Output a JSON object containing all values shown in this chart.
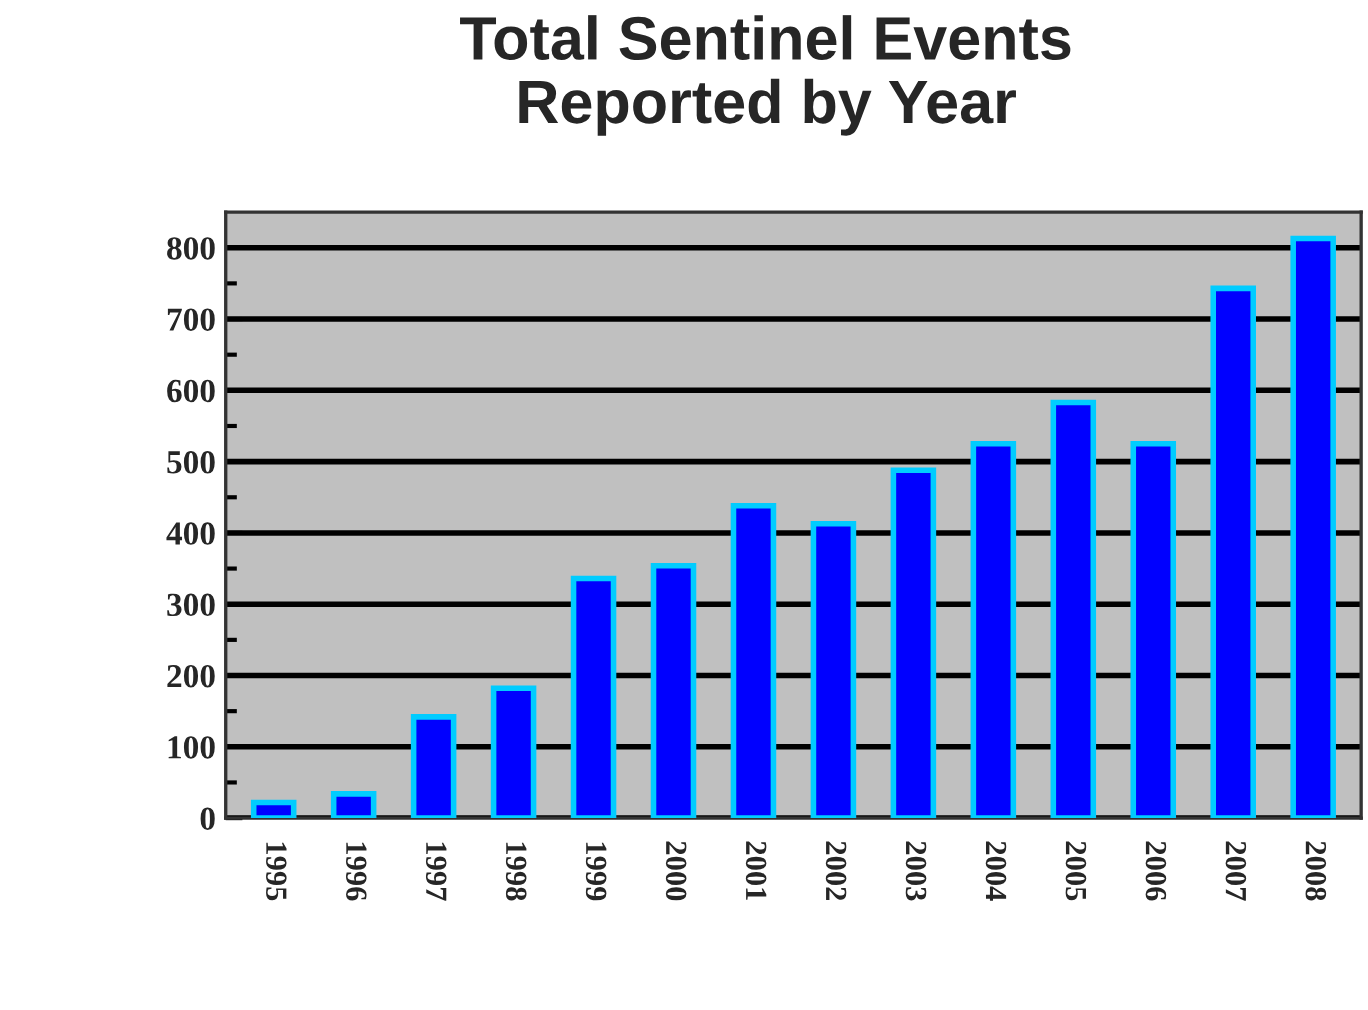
{
  "chart_data": {
    "type": "bar",
    "title": "Total Sentinel Events\nReported by Year",
    "categories": [
      "1995",
      "1996",
      "1997",
      "1998",
      "1999",
      "2000",
      "2001",
      "2002",
      "2003",
      "2004",
      "2005",
      "2006",
      "2007",
      "2008"
    ],
    "values": [
      22,
      34,
      142,
      182,
      336,
      354,
      438,
      413,
      488,
      525,
      583,
      525,
      743,
      813
    ],
    "color": "#0000ff",
    "ylim": [
      0,
      850
    ],
    "yticks": [
      0,
      {
        "value": 50,
        "label": null
      },
      100,
      {
        "value": 150,
        "label": null
      },
      200,
      {
        "value": 250,
        "label": null
      },
      300,
      {
        "value": 350,
        "label": null
      },
      400,
      {
        "value": 450,
        "label": null
      },
      500,
      {
        "value": 550,
        "label": null
      },
      600,
      {
        "value": 650,
        "label": null
      },
      700,
      {
        "value": 750,
        "label": null
      },
      800
    ],
    "grid": "y"
  }
}
